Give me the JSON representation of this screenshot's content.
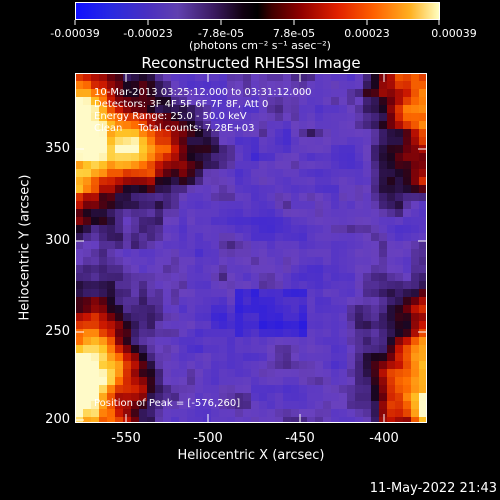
{
  "colorbar": {
    "ticks": [
      "-0.00039",
      "-0.00023",
      "-7.8e-05",
      "7.8e-05",
      "0.00023",
      "0.00039"
    ],
    "units": "(photons cm⁻² s⁻¹ asec⁻²)"
  },
  "image": {
    "title": "Reconstructed RHESSI Image",
    "info_lines": [
      "10-Mar-2013 03:25:12.000 to 03:31:12.000",
      "Detectors: 3F 4F 5F 6F 7F 8F, Att 0",
      "Energy Range: 25.0 - 50.0 keV",
      "Clean     Total counts: 7.28E+03"
    ],
    "peak_label": "Position of Peak = [-576,260]"
  },
  "axes": {
    "x_label": "Heliocentric X (arcsec)",
    "y_label": "Heliocentric Y (arcsec)",
    "x_ticks": [
      "-550",
      "-500",
      "-450",
      "-400"
    ],
    "y_ticks": [
      "350",
      "300",
      "250",
      "200"
    ]
  },
  "footer": {
    "timestamp": "11-May-2022 21:43"
  },
  "colors": {
    "background": "#000000",
    "frame": "#ffffff",
    "colormap": [
      "#0000ff",
      "#5a2dbf",
      "#6a3dc6",
      "#301050",
      "#000000",
      "#800000",
      "#ff3000",
      "#ff8000",
      "#ffe060",
      "#ffffff"
    ]
  }
}
